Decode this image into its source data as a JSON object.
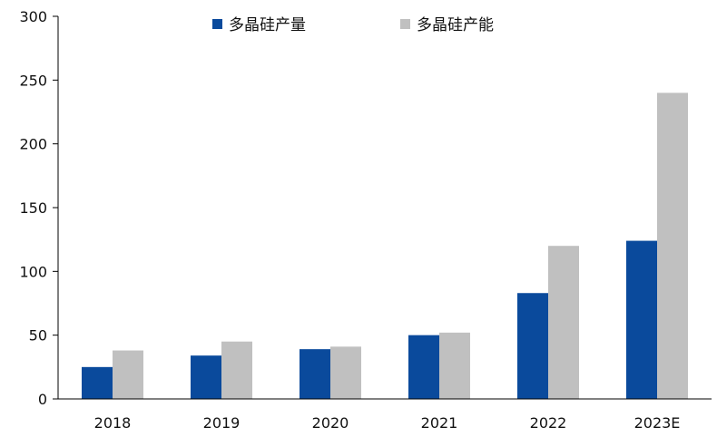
{
  "chart_data": {
    "type": "bar",
    "title": "",
    "xlabel": "",
    "ylabel": "",
    "categories": [
      "2018",
      "2019",
      "2020",
      "2021",
      "2022",
      "2023E"
    ],
    "series": [
      {
        "name": "多晶硅产量",
        "values": [
          25,
          34,
          39,
          50,
          83,
          124
        ],
        "color": "#0a4a9c"
      },
      {
        "name": "多晶硅产能",
        "values": [
          38,
          45,
          41,
          52,
          120,
          240
        ],
        "color": "#c0c0c0"
      }
    ],
    "ylim": [
      0,
      300
    ],
    "yticks": [
      0,
      50,
      100,
      150,
      200,
      250,
      300
    ],
    "grid": false,
    "legend_position": "top-center"
  }
}
